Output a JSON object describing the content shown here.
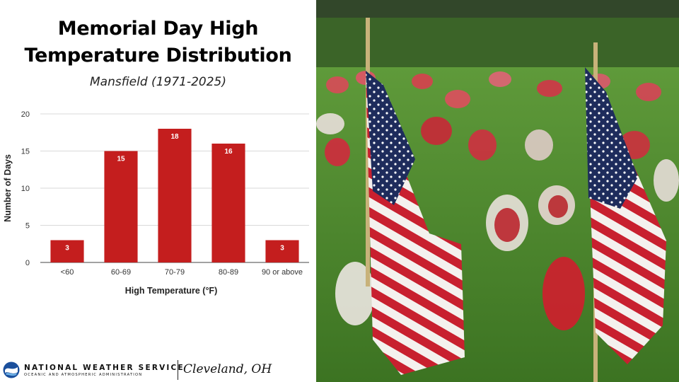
{
  "title_line1": "Memorial Day High",
  "title_line2": "Temperature Distribution",
  "subtitle": "Mansfield (1971-2025)",
  "chart_data": {
    "type": "bar",
    "categories": [
      "<60",
      "60-69",
      "70-79",
      "80-89",
      "90 or above"
    ],
    "values": [
      3,
      15,
      18,
      16,
      3
    ],
    "data_labels": [
      "3",
      "15",
      "18",
      "16",
      "3"
    ],
    "title": "Memorial Day High Temperature Distribution",
    "subtitle": "Mansfield (1971-2025)",
    "xlabel": "High Temperature (°F)",
    "ylabel": "Number of Days",
    "ylim": [
      0,
      20
    ],
    "yticks": [
      0,
      5,
      10,
      15,
      20
    ],
    "grid": true,
    "legend": "none",
    "bar_color": "#c41e1e"
  },
  "footer": {
    "agency": "NATIONAL WEATHER SERVICE",
    "agency_sub": "OCEANIC AND ATMOSPHERIC ADMINISTRATION",
    "office": "Cleveland, OH"
  },
  "colors": {
    "bar": "#c41e1e",
    "gridline": "#d9d9d9",
    "noaa_blue": "#1b4f9c"
  },
  "photo": {
    "subject": "american-flags-on-grass"
  }
}
